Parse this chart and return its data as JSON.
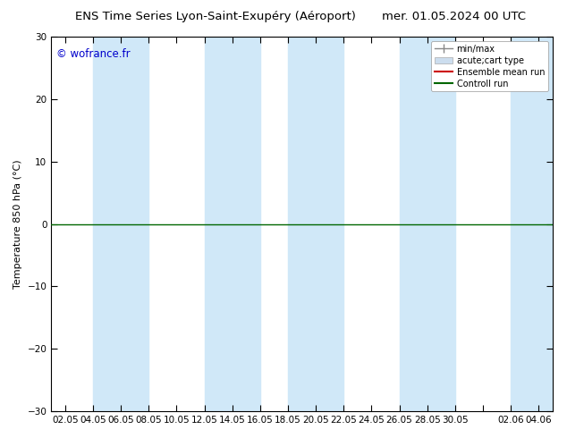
{
  "title_left": "ENS Time Series Lyon-Saint-Exupéry (Aéroport)",
  "title_right": "mer. 01.05.2024 00 UTC",
  "ylabel": "Temperature 850 hPa (°C)",
  "watermark": "© wofrance.fr",
  "ylim": [
    -30,
    30
  ],
  "yticks": [
    -30,
    -20,
    -10,
    0,
    10,
    20,
    30
  ],
  "xtick_labels": [
    "02.05",
    "04.05",
    "06.05",
    "08.05",
    "10.05",
    "12.05",
    "14.05",
    "16.05",
    "18.05",
    "20.05",
    "22.05",
    "24.05",
    "26.05",
    "28.05",
    "30.05",
    "",
    "02.06",
    "04.06"
  ],
  "band_color": "#d0e8f8",
  "background_color": "#ffffff",
  "legend_items": [
    {
      "label": "min/max"
    },
    {
      "label": "acute;cart type"
    },
    {
      "label": "Ensemble mean run",
      "color": "#cc0000"
    },
    {
      "label": "Controll run",
      "color": "#006600"
    }
  ],
  "zero_line_color": "#006600",
  "title_fontsize": 9.5,
  "label_fontsize": 8,
  "tick_fontsize": 7.5,
  "watermark_color": "#0000cc"
}
